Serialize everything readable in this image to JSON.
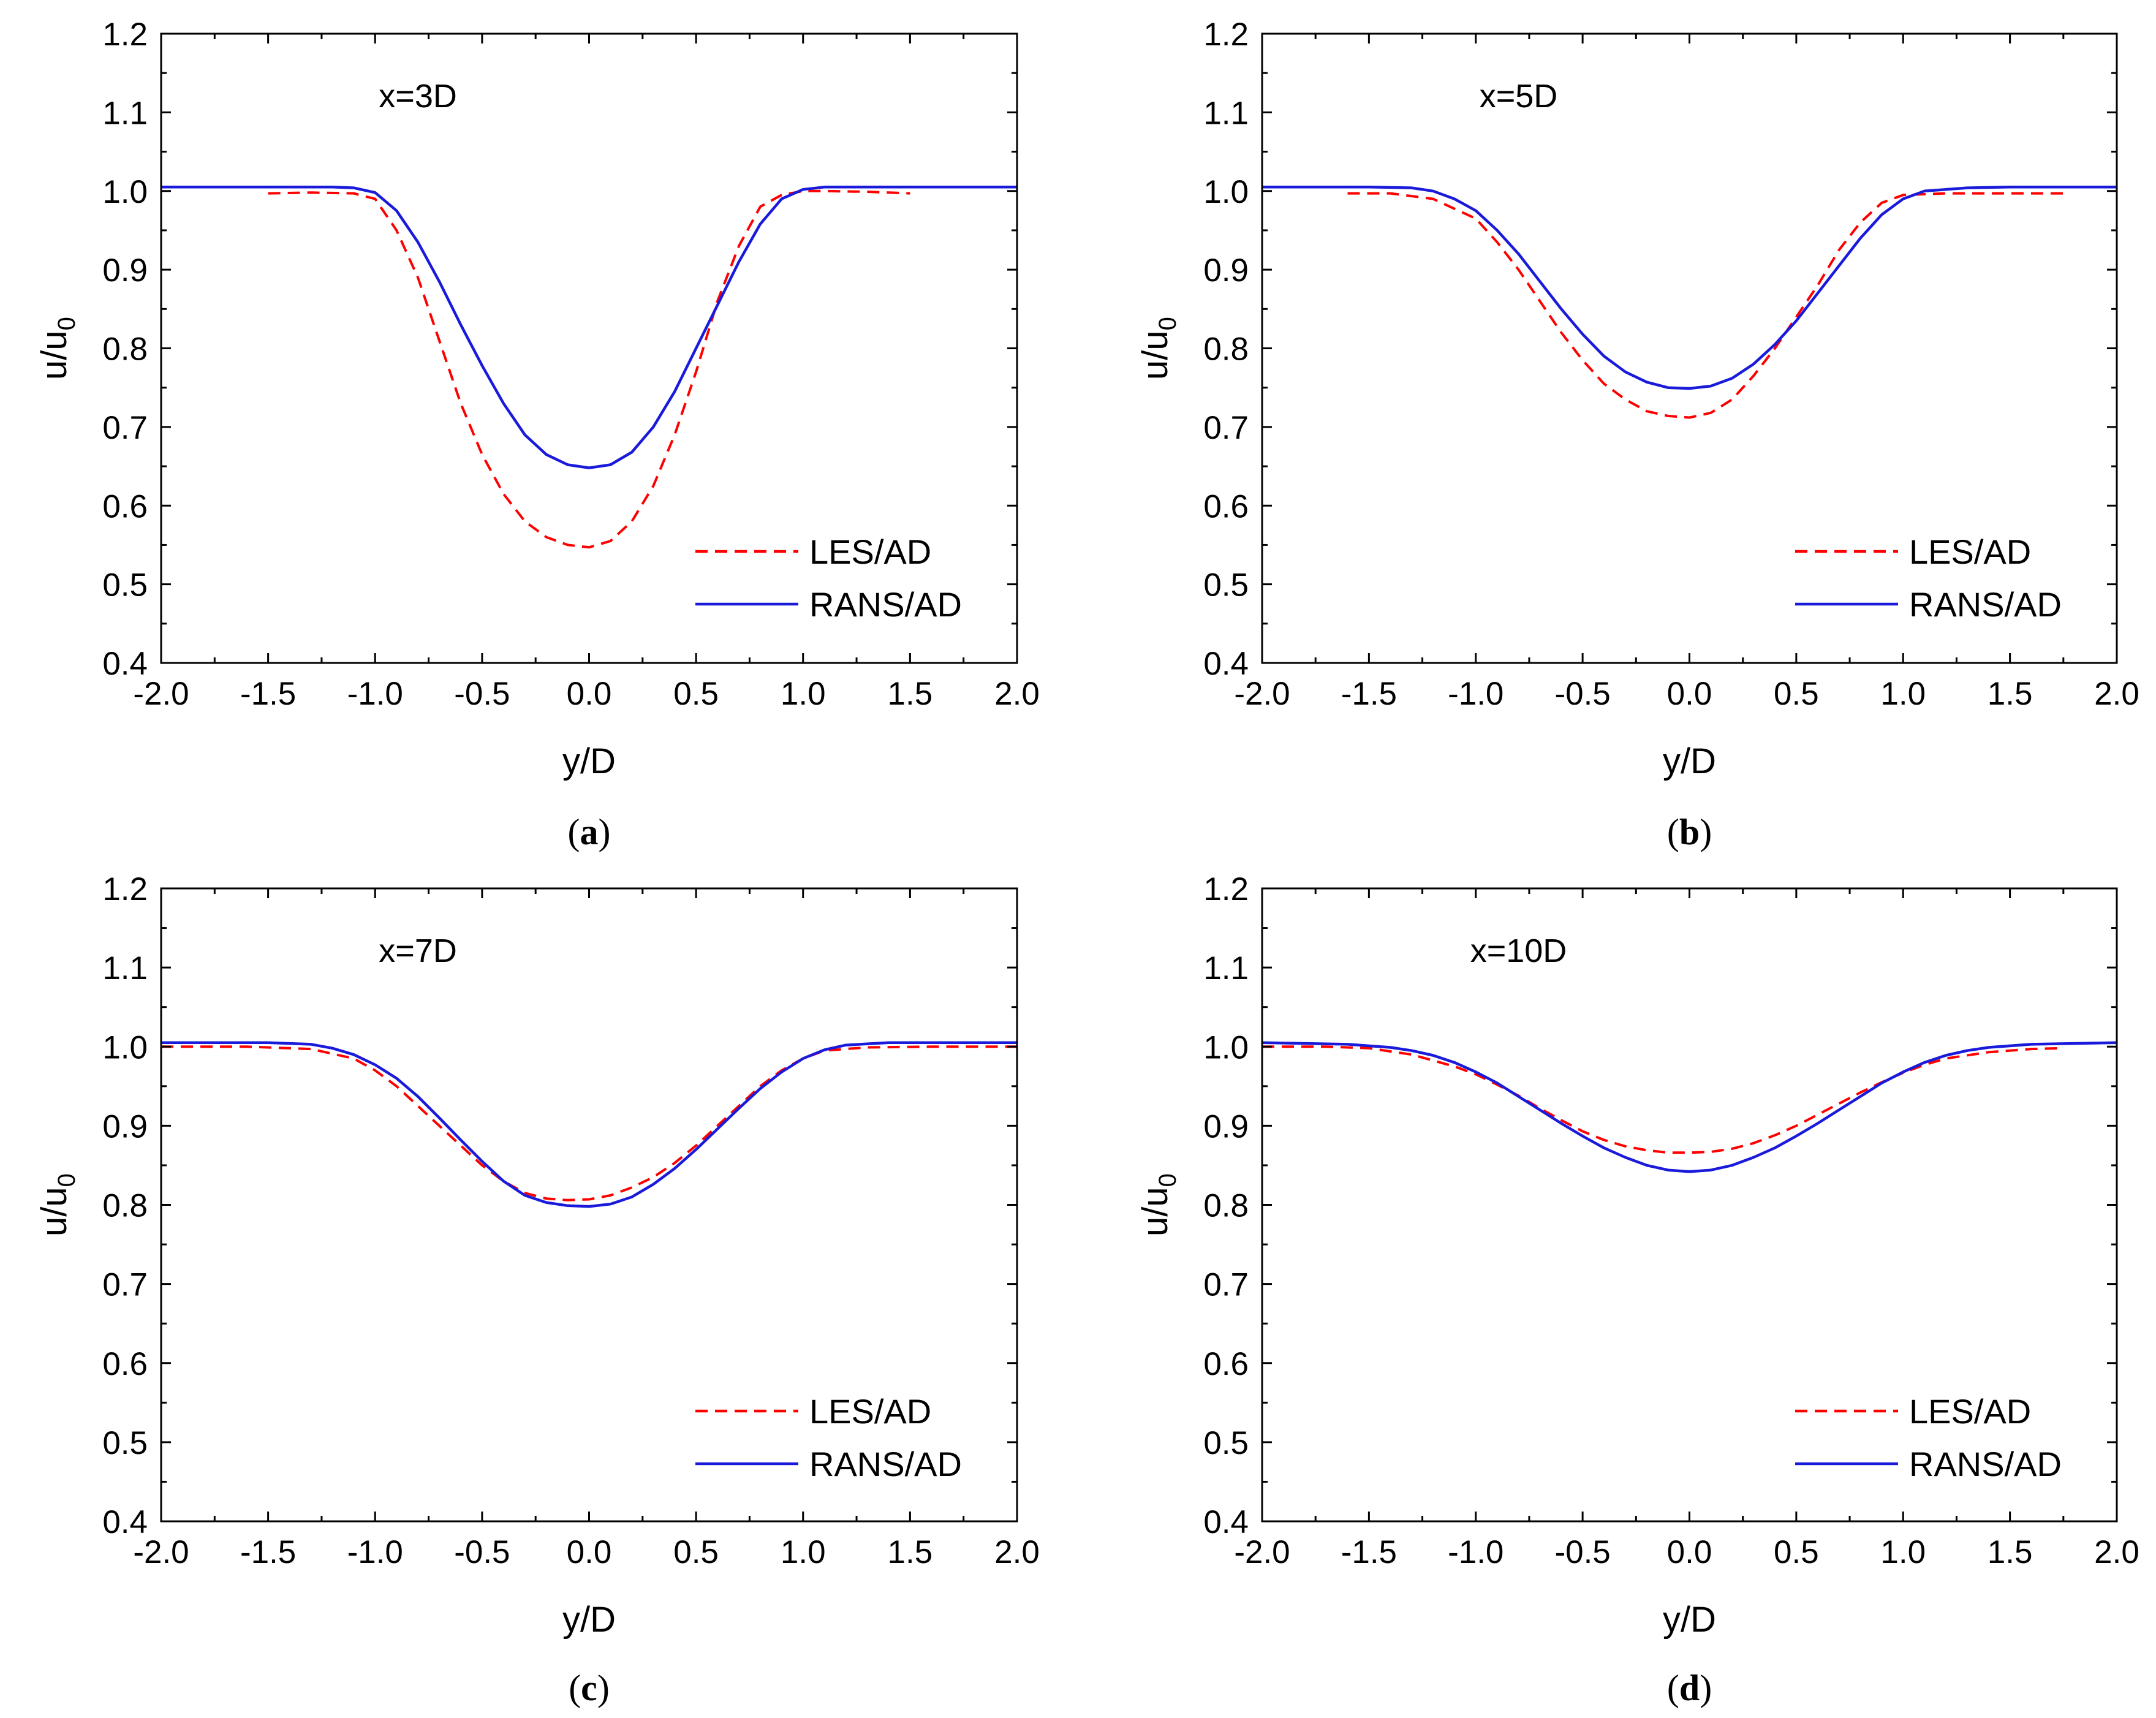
{
  "chart_data": [
    {
      "type": "line",
      "panel_label": "(a)",
      "caption_open": "(",
      "caption_letter": "a",
      "caption_close": ")",
      "title": "x=3D",
      "xlabel": "y/D",
      "ylabel_main": "u/u",
      "ylabel_sub": "0",
      "xlim": [
        -2.0,
        2.0
      ],
      "ylim": [
        0.4,
        1.2
      ],
      "xticks": [
        "-2.0",
        "-1.5",
        "-1.0",
        "-0.5",
        "0.0",
        "0.5",
        "1.0",
        "1.5",
        "2.0"
      ],
      "yticks": [
        "0.4",
        "0.5",
        "0.6",
        "0.7",
        "0.8",
        "0.9",
        "1.0",
        "1.1",
        "1.2"
      ],
      "legend_position": "bottom-right",
      "series": [
        {
          "name": "LES/AD",
          "color": "#ff0000",
          "dash": true,
          "x": [
            -1.5,
            -1.3,
            -1.1,
            -1.0,
            -0.9,
            -0.8,
            -0.7,
            -0.6,
            -0.5,
            -0.4,
            -0.3,
            -0.2,
            -0.1,
            0.0,
            0.1,
            0.2,
            0.3,
            0.4,
            0.5,
            0.6,
            0.7,
            0.8,
            0.9,
            1.0,
            1.1,
            1.3,
            1.5
          ],
          "y": [
            0.997,
            0.998,
            0.997,
            0.99,
            0.95,
            0.89,
            0.81,
            0.73,
            0.665,
            0.615,
            0.58,
            0.56,
            0.55,
            0.547,
            0.555,
            0.58,
            0.625,
            0.69,
            0.77,
            0.86,
            0.93,
            0.98,
            0.995,
            1.0,
            1.0,
            0.999,
            0.997
          ]
        },
        {
          "name": "RANS/AD",
          "color": "#1a1adb",
          "dash": false,
          "x": [
            -2.0,
            -1.5,
            -1.2,
            -1.1,
            -1.0,
            -0.9,
            -0.8,
            -0.7,
            -0.6,
            -0.5,
            -0.4,
            -0.3,
            -0.2,
            -0.1,
            0.0,
            0.1,
            0.2,
            0.3,
            0.4,
            0.5,
            0.6,
            0.7,
            0.8,
            0.9,
            1.0,
            1.1,
            1.2,
            1.5,
            2.0
          ],
          "y": [
            1.005,
            1.005,
            1.005,
            1.004,
            0.998,
            0.975,
            0.935,
            0.885,
            0.83,
            0.778,
            0.73,
            0.69,
            0.665,
            0.652,
            0.648,
            0.652,
            0.668,
            0.7,
            0.745,
            0.8,
            0.855,
            0.91,
            0.958,
            0.99,
            1.002,
            1.005,
            1.005,
            1.005,
            1.005
          ]
        }
      ]
    },
    {
      "type": "line",
      "panel_label": "(b)",
      "caption_open": "(",
      "caption_letter": "b",
      "caption_close": ")",
      "title": "x=5D",
      "xlabel": "y/D",
      "ylabel_main": "u/u",
      "ylabel_sub": "0",
      "xlim": [
        -2.0,
        2.0
      ],
      "ylim": [
        0.4,
        1.2
      ],
      "xticks": [
        "-2.0",
        "-1.5",
        "-1.0",
        "-0.5",
        "0.0",
        "0.5",
        "1.0",
        "1.5",
        "2.0"
      ],
      "yticks": [
        "0.4",
        "0.5",
        "0.6",
        "0.7",
        "0.8",
        "0.9",
        "1.0",
        "1.1",
        "1.2"
      ],
      "legend_position": "bottom-right",
      "series": [
        {
          "name": "LES/AD",
          "color": "#ff0000",
          "dash": true,
          "x": [
            -1.6,
            -1.4,
            -1.2,
            -1.0,
            -0.9,
            -0.8,
            -0.7,
            -0.6,
            -0.5,
            -0.4,
            -0.3,
            -0.2,
            -0.1,
            0.0,
            0.1,
            0.2,
            0.3,
            0.4,
            0.5,
            0.6,
            0.7,
            0.8,
            0.9,
            1.0,
            1.2,
            1.5,
            1.75
          ],
          "y": [
            0.997,
            0.997,
            0.99,
            0.965,
            0.935,
            0.9,
            0.86,
            0.82,
            0.785,
            0.755,
            0.735,
            0.72,
            0.714,
            0.712,
            0.718,
            0.735,
            0.765,
            0.8,
            0.84,
            0.88,
            0.925,
            0.96,
            0.985,
            0.995,
            0.997,
            0.997,
            0.997
          ]
        },
        {
          "name": "RANS/AD",
          "color": "#1a1adb",
          "dash": false,
          "x": [
            -2.0,
            -1.5,
            -1.3,
            -1.2,
            -1.1,
            -1.0,
            -0.9,
            -0.8,
            -0.7,
            -0.6,
            -0.5,
            -0.4,
            -0.3,
            -0.2,
            -0.1,
            0.0,
            0.1,
            0.2,
            0.3,
            0.4,
            0.5,
            0.6,
            0.7,
            0.8,
            0.9,
            1.0,
            1.1,
            1.3,
            1.5,
            2.0
          ],
          "y": [
            1.005,
            1.005,
            1.004,
            1.0,
            0.99,
            0.975,
            0.95,
            0.92,
            0.885,
            0.85,
            0.818,
            0.79,
            0.77,
            0.757,
            0.75,
            0.749,
            0.752,
            0.762,
            0.78,
            0.805,
            0.835,
            0.87,
            0.905,
            0.94,
            0.97,
            0.99,
            1.0,
            1.004,
            1.005,
            1.005
          ]
        }
      ]
    },
    {
      "type": "line",
      "panel_label": "(c)",
      "caption_open": "(",
      "caption_letter": "c",
      "caption_close": ")",
      "title": "x=7D",
      "xlabel": "y/D",
      "ylabel_main": "u/u",
      "ylabel_sub": "0",
      "xlim": [
        -2.0,
        2.0
      ],
      "ylim": [
        0.4,
        1.2
      ],
      "xticks": [
        "-2.0",
        "-1.5",
        "-1.0",
        "-0.5",
        "0.0",
        "0.5",
        "1.0",
        "1.5",
        "2.0"
      ],
      "yticks": [
        "0.4",
        "0.5",
        "0.6",
        "0.7",
        "0.8",
        "0.9",
        "1.0",
        "1.1",
        "1.2"
      ],
      "legend_position": "bottom-right",
      "series": [
        {
          "name": "LES/AD",
          "color": "#ff0000",
          "dash": true,
          "x": [
            -2.0,
            -1.6,
            -1.3,
            -1.1,
            -1.0,
            -0.9,
            -0.8,
            -0.7,
            -0.6,
            -0.5,
            -0.4,
            -0.3,
            -0.2,
            -0.1,
            0.0,
            0.1,
            0.2,
            0.3,
            0.4,
            0.5,
            0.6,
            0.7,
            0.8,
            0.9,
            1.0,
            1.1,
            1.3,
            1.6,
            2.0
          ],
          "y": [
            1.0,
            1.0,
            0.997,
            0.985,
            0.97,
            0.95,
            0.925,
            0.9,
            0.875,
            0.85,
            0.83,
            0.815,
            0.808,
            0.806,
            0.807,
            0.812,
            0.822,
            0.835,
            0.853,
            0.875,
            0.9,
            0.925,
            0.95,
            0.97,
            0.985,
            0.995,
            0.999,
            1.0,
            1.0
          ]
        },
        {
          "name": "RANS/AD",
          "color": "#1a1adb",
          "dash": false,
          "x": [
            -2.0,
            -1.5,
            -1.3,
            -1.2,
            -1.1,
            -1.0,
            -0.9,
            -0.8,
            -0.7,
            -0.6,
            -0.5,
            -0.4,
            -0.3,
            -0.2,
            -0.1,
            0.0,
            0.1,
            0.2,
            0.3,
            0.4,
            0.5,
            0.6,
            0.7,
            0.8,
            0.9,
            1.0,
            1.1,
            1.2,
            1.4,
            1.6,
            2.0
          ],
          "y": [
            1.005,
            1.005,
            1.003,
            0.998,
            0.99,
            0.977,
            0.96,
            0.937,
            0.91,
            0.882,
            0.855,
            0.83,
            0.812,
            0.803,
            0.799,
            0.798,
            0.801,
            0.81,
            0.826,
            0.846,
            0.87,
            0.896,
            0.922,
            0.947,
            0.968,
            0.985,
            0.996,
            1.002,
            1.005,
            1.005,
            1.005
          ]
        }
      ]
    },
    {
      "type": "line",
      "panel_label": "(d)",
      "caption_open": "(",
      "caption_letter": "d",
      "caption_close": ")",
      "title": "x=10D",
      "xlabel": "y/D",
      "ylabel_main": "u/u",
      "ylabel_sub": "0",
      "xlim": [
        -2.0,
        2.0
      ],
      "ylim": [
        0.4,
        1.2
      ],
      "xticks": [
        "-2.0",
        "-1.5",
        "-1.0",
        "-0.5",
        "0.0",
        "0.5",
        "1.0",
        "1.5",
        "2.0"
      ],
      "yticks": [
        "0.4",
        "0.5",
        "0.6",
        "0.7",
        "0.8",
        "0.9",
        "1.0",
        "1.1",
        "1.2"
      ],
      "legend_position": "bottom-right",
      "series": [
        {
          "name": "LES/AD",
          "color": "#ff0000",
          "dash": true,
          "x": [
            -2.0,
            -1.7,
            -1.5,
            -1.3,
            -1.1,
            -1.0,
            -0.9,
            -0.8,
            -0.7,
            -0.6,
            -0.5,
            -0.4,
            -0.3,
            -0.2,
            -0.1,
            0.0,
            0.1,
            0.2,
            0.3,
            0.4,
            0.5,
            0.6,
            0.7,
            0.8,
            0.9,
            1.0,
            1.1,
            1.2,
            1.4,
            1.6,
            1.75
          ],
          "y": [
            1.0,
            1.0,
            0.998,
            0.99,
            0.975,
            0.965,
            0.952,
            0.938,
            0.922,
            0.907,
            0.893,
            0.882,
            0.874,
            0.869,
            0.866,
            0.866,
            0.867,
            0.871,
            0.878,
            0.888,
            0.9,
            0.914,
            0.928,
            0.942,
            0.955,
            0.967,
            0.977,
            0.985,
            0.993,
            0.997,
            0.998
          ]
        },
        {
          "name": "RANS/AD",
          "color": "#1a1adb",
          "dash": false,
          "x": [
            -2.0,
            -1.6,
            -1.4,
            -1.3,
            -1.2,
            -1.1,
            -1.0,
            -0.9,
            -0.8,
            -0.7,
            -0.6,
            -0.5,
            -0.4,
            -0.3,
            -0.2,
            -0.1,
            0.0,
            0.1,
            0.2,
            0.3,
            0.4,
            0.5,
            0.6,
            0.7,
            0.8,
            0.9,
            1.0,
            1.1,
            1.2,
            1.3,
            1.4,
            1.6,
            2.0
          ],
          "y": [
            1.005,
            1.003,
            0.999,
            0.995,
            0.989,
            0.98,
            0.968,
            0.954,
            0.937,
            0.92,
            0.903,
            0.887,
            0.872,
            0.86,
            0.85,
            0.844,
            0.842,
            0.844,
            0.85,
            0.86,
            0.872,
            0.887,
            0.903,
            0.92,
            0.937,
            0.954,
            0.968,
            0.98,
            0.989,
            0.995,
            0.999,
            1.003,
            1.005
          ]
        }
      ]
    }
  ]
}
